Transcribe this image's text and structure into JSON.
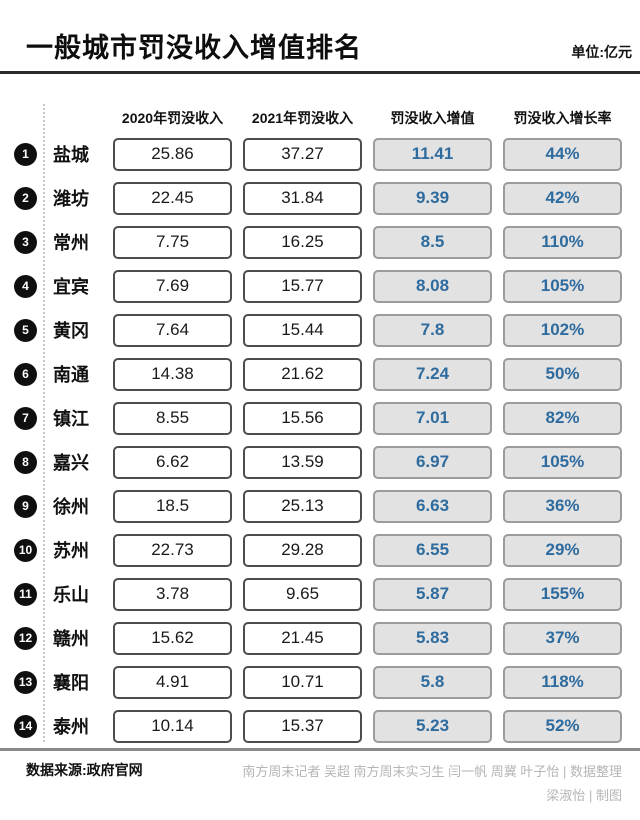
{
  "header": {
    "title": "一般城市罚没收入增值排名",
    "unit": "单位:亿元"
  },
  "table": {
    "columns": [
      "2020年罚没收入",
      "2021年罚没收入",
      "罚没收入增值",
      "罚没收入增长率"
    ],
    "rows": [
      {
        "rank": "1",
        "city": "盐城",
        "y2020": "25.86",
        "y2021": "37.27",
        "increase": "11.41",
        "growth": "44%"
      },
      {
        "rank": "2",
        "city": "潍坊",
        "y2020": "22.45",
        "y2021": "31.84",
        "increase": "9.39",
        "growth": "42%"
      },
      {
        "rank": "3",
        "city": "常州",
        "y2020": "7.75",
        "y2021": "16.25",
        "increase": "8.5",
        "growth": "110%"
      },
      {
        "rank": "4",
        "city": "宜宾",
        "y2020": "7.69",
        "y2021": "15.77",
        "increase": "8.08",
        "growth": "105%"
      },
      {
        "rank": "5",
        "city": "黄冈",
        "y2020": "7.64",
        "y2021": "15.44",
        "increase": "7.8",
        "growth": "102%"
      },
      {
        "rank": "6",
        "city": "南通",
        "y2020": "14.38",
        "y2021": "21.62",
        "increase": "7.24",
        "growth": "50%"
      },
      {
        "rank": "7",
        "city": "镇江",
        "y2020": "8.55",
        "y2021": "15.56",
        "increase": "7.01",
        "growth": "82%"
      },
      {
        "rank": "8",
        "city": "嘉兴",
        "y2020": "6.62",
        "y2021": "13.59",
        "increase": "6.97",
        "growth": "105%"
      },
      {
        "rank": "9",
        "city": "徐州",
        "y2020": "18.5",
        "y2021": "25.13",
        "increase": "6.63",
        "growth": "36%"
      },
      {
        "rank": "10",
        "city": "苏州",
        "y2020": "22.73",
        "y2021": "29.28",
        "increase": "6.55",
        "growth": "29%"
      },
      {
        "rank": "11",
        "city": "乐山",
        "y2020": "3.78",
        "y2021": "9.65",
        "increase": "5.87",
        "growth": "155%"
      },
      {
        "rank": "12",
        "city": "赣州",
        "y2020": "15.62",
        "y2021": "21.45",
        "increase": "5.83",
        "growth": "37%"
      },
      {
        "rank": "13",
        "city": "襄阳",
        "y2020": "4.91",
        "y2021": "10.71",
        "increase": "5.8",
        "growth": "118%"
      },
      {
        "rank": "14",
        "city": "泰州",
        "y2020": "10.14",
        "y2021": "15.37",
        "increase": "5.23",
        "growth": "52%"
      }
    ]
  },
  "footer": {
    "source": "数据来源:政府官网",
    "credit_line1": "南方周末记者 吴超 南方周末实习生 闫一帆 周冀 叶子怡 | 数据整理",
    "credit_line2": "梁淑怡 | 制图"
  },
  "colors": {
    "accent_blue": "#2e6b9e",
    "box_gray": "#e2e2e2",
    "badge_black": "#0f0f0f"
  },
  "chart_data": {
    "type": "table",
    "title": "一般城市罚没收入增值排名",
    "unit": "亿元",
    "categories": [
      "盐城",
      "潍坊",
      "常州",
      "宜宾",
      "黄冈",
      "南通",
      "镇江",
      "嘉兴",
      "徐州",
      "苏州",
      "乐山",
      "赣州",
      "襄阳",
      "泰州"
    ],
    "series": [
      {
        "name": "2020年罚没收入",
        "values": [
          25.86,
          22.45,
          7.75,
          7.69,
          7.64,
          14.38,
          8.55,
          6.62,
          18.5,
          22.73,
          3.78,
          15.62,
          4.91,
          10.14
        ]
      },
      {
        "name": "2021年罚没收入",
        "values": [
          37.27,
          31.84,
          16.25,
          15.77,
          15.44,
          21.62,
          15.56,
          13.59,
          25.13,
          29.28,
          9.65,
          21.45,
          10.71,
          15.37
        ]
      },
      {
        "name": "罚没收入增值",
        "values": [
          11.41,
          9.39,
          8.5,
          8.08,
          7.8,
          7.24,
          7.01,
          6.97,
          6.63,
          6.55,
          5.87,
          5.83,
          5.8,
          5.23
        ]
      },
      {
        "name": "罚没收入增长率(%)",
        "values": [
          44,
          42,
          110,
          105,
          102,
          50,
          82,
          105,
          36,
          29,
          155,
          37,
          118,
          52
        ]
      }
    ]
  }
}
